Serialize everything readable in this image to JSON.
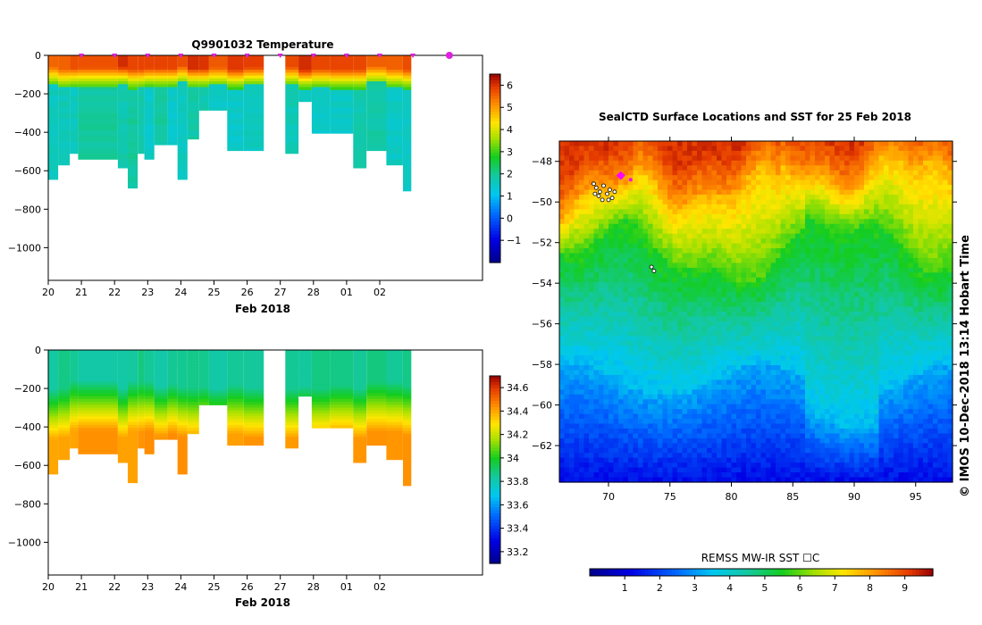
{
  "temp_panel": {
    "title": "Q9901032  Temperature",
    "xlabel": "Feb 2018",
    "x_ticks": [
      "20",
      "21",
      "22",
      "23",
      "24",
      "25",
      "26",
      "27",
      "28",
      "01",
      "02"
    ],
    "y_ticks": [
      "0",
      "−200",
      "−400",
      "−600",
      "−800",
      "−1000"
    ],
    "colorbar_ticks": [
      "6",
      "5",
      "4",
      "3",
      "2",
      "1",
      "0",
      "−1"
    ]
  },
  "sal_panel": {
    "xlabel": "Feb 2018",
    "x_ticks": [
      "20",
      "21",
      "22",
      "23",
      "24",
      "25",
      "26",
      "27",
      "28",
      "01",
      "02"
    ],
    "y_ticks": [
      "0",
      "−200",
      "−400",
      "−600",
      "−800",
      "−1000"
    ],
    "colorbar_ticks": [
      "34.6",
      "34.4",
      "34.2",
      "34",
      "33.8",
      "33.6",
      "33.4",
      "33.2"
    ]
  },
  "map_panel": {
    "title": "SealCTD Surface Locations and SST for 25 Feb 2018",
    "lat_ticks": [
      "−48",
      "−50",
      "−52",
      "−54",
      "−56",
      "−58",
      "−60",
      "−62"
    ],
    "lon_ticks": [
      "70",
      "75",
      "80",
      "85",
      "90",
      "95"
    ],
    "colorbar_label": "REMSS MW-IR SST ☐C",
    "colorbar_ticks": [
      "1",
      "2",
      "3",
      "4",
      "5",
      "6",
      "7",
      "8",
      "9"
    ],
    "side_label": "©  IMOS 10-Dec-2018 13:14 Hobart Time"
  },
  "colors": {
    "marker": "#e020e0",
    "map_marker": "#ff00ff"
  },
  "chart_data": [
    {
      "type": "heatmap",
      "name": "temperature-section",
      "title": "Q9901032  Temperature",
      "xlabel": "Feb 2018",
      "ylabel": "",
      "xlim": [
        20,
        33.1
      ],
      "ylim": [
        -1170,
        0
      ],
      "colorbar_range": [
        -2,
        6.5
      ],
      "profile_days": [
        20.0,
        20.3,
        20.65,
        20.9,
        22.1,
        22.4,
        22.7,
        22.9,
        23.2,
        23.6,
        23.9,
        24.2,
        24.55,
        24.85,
        25.4,
        25.9,
        26.5,
        27.15,
        27.55,
        27.95,
        28.5,
        29.2,
        29.6,
        30.2,
        30.7
      ],
      "profile_max_depth": [
        645,
        570,
        505,
        530,
        585,
        690,
        505,
        540,
        460,
        460,
        640,
        425,
        275,
        275,
        490,
        490,
        0,
        500,
        235,
        395,
        395,
        580,
        495,
        560,
        700
      ],
      "surface_layer_depth": 120,
      "surface_temperature": 5.8,
      "deep_temperature": 1.7
    },
    {
      "type": "heatmap",
      "name": "salinity-section",
      "title": "",
      "xlabel": "Feb 2018",
      "ylabel": "",
      "xlim": [
        20,
        33.1
      ],
      "ylim": [
        -1170,
        0
      ],
      "colorbar_range": [
        33.1,
        34.7
      ],
      "surface_salinity": 33.85,
      "deep_salinity": 34.42
    },
    {
      "type": "heatmap",
      "name": "sst-map",
      "title": "SealCTD Surface Locations and SST for 25 Feb 2018",
      "xlabel": "",
      "ylabel": "",
      "xlim": [
        66,
        98
      ],
      "ylim": [
        -63.8,
        -47
      ],
      "colorbar_range": [
        0,
        9.8
      ],
      "sst_north": 9.0,
      "sst_south": 1.3
    }
  ]
}
